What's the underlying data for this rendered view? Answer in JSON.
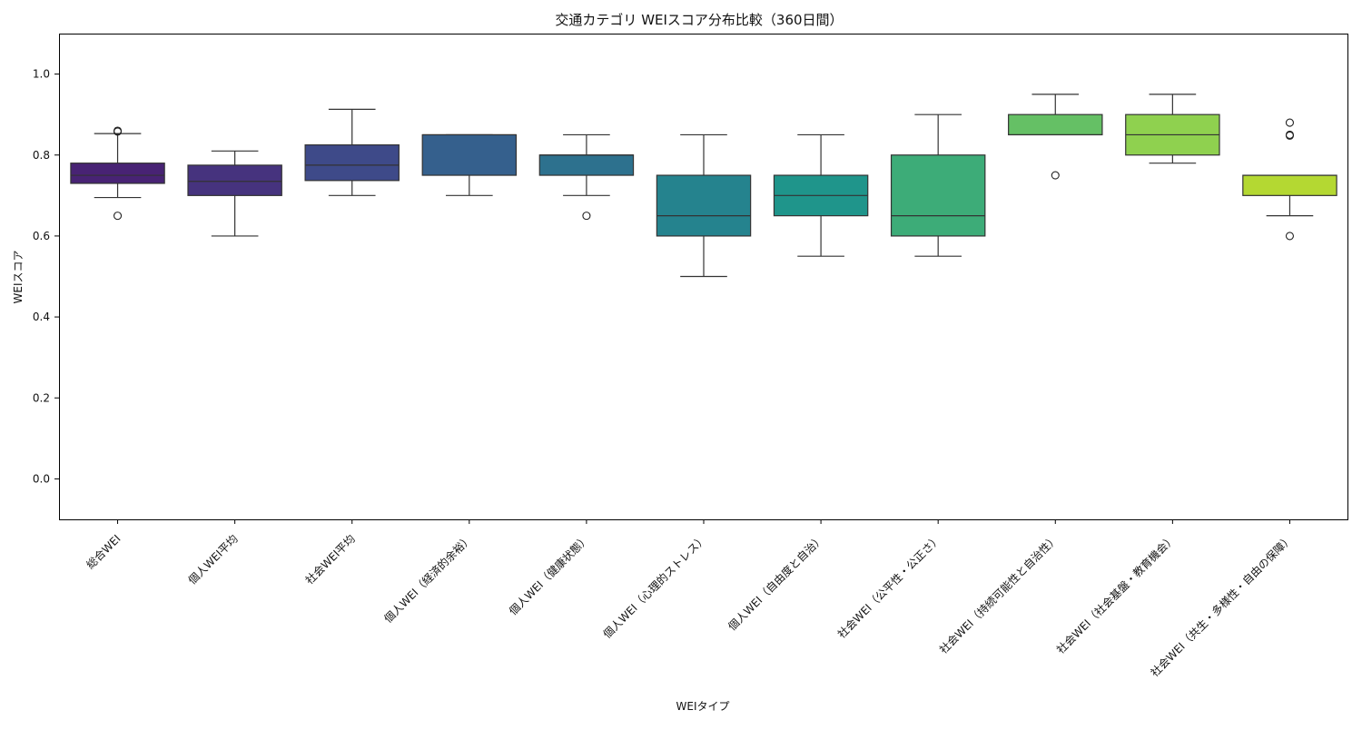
{
  "chart_data": {
    "type": "box",
    "title": "交通カテゴリ WEIスコア分布比較（360日間）",
    "xlabel": "WEIタイプ",
    "ylabel": "WEIスコア",
    "ylim": [
      -0.1,
      1.1
    ],
    "yticks": [
      0.0,
      0.2,
      0.4,
      0.6,
      0.8,
      1.0
    ],
    "ytick_labels": [
      "0.0",
      "0.2",
      "0.4",
      "0.6",
      "0.8",
      "1.0"
    ],
    "grid": false,
    "legend": "none",
    "categories": [
      "総合WEI",
      "個人WEI平均",
      "社会WEI平均",
      "個人WEI（経済的余裕）",
      "個人WEI（健康状態）",
      "個人WEI（心理的ストレス）",
      "個人WEI（自由度と自治）",
      "社会WEI（公平性・公正さ）",
      "社会WEI（持続可能性と自治性）",
      "社会WEI（社会基盤・教育機会）",
      "社会WEI（共生・多様性・自由の保障）"
    ],
    "boxes": [
      {
        "whisker_low": 0.695,
        "q1": 0.73,
        "median": 0.75,
        "q3": 0.78,
        "whisker_high": 0.853,
        "outliers": [
          0.65,
          0.858,
          0.86
        ],
        "color": "#482374"
      },
      {
        "whisker_low": 0.6,
        "q1": 0.7,
        "median": 0.735,
        "q3": 0.775,
        "whisker_high": 0.81,
        "outliers": [],
        "color": "#46337e"
      },
      {
        "whisker_low": 0.7,
        "q1": 0.737,
        "median": 0.775,
        "q3": 0.825,
        "whisker_high": 0.913,
        "outliers": [],
        "color": "#3e4a89"
      },
      {
        "whisker_low": 0.7,
        "q1": 0.75,
        "median": 0.85,
        "q3": 0.85,
        "whisker_high": 0.85,
        "outliers": [],
        "color": "#35608d"
      },
      {
        "whisker_low": 0.7,
        "q1": 0.75,
        "median": 0.8,
        "q3": 0.8,
        "whisker_high": 0.85,
        "outliers": [
          0.65
        ],
        "color": "#2d718e"
      },
      {
        "whisker_low": 0.5,
        "q1": 0.6,
        "median": 0.65,
        "q3": 0.75,
        "whisker_high": 0.85,
        "outliers": [],
        "color": "#25838e"
      },
      {
        "whisker_low": 0.55,
        "q1": 0.65,
        "median": 0.7,
        "q3": 0.75,
        "whisker_high": 0.85,
        "outliers": [],
        "color": "#1f958b"
      },
      {
        "whisker_low": 0.55,
        "q1": 0.6,
        "median": 0.65,
        "q3": 0.8,
        "whisker_high": 0.9,
        "outliers": [],
        "color": "#3dac78"
      },
      {
        "whisker_low": 0.85,
        "q1": 0.85,
        "median": 0.85,
        "q3": 0.9,
        "whisker_high": 0.95,
        "outliers": [
          0.75
        ],
        "color": "#65c065"
      },
      {
        "whisker_low": 0.78,
        "q1": 0.8,
        "median": 0.85,
        "q3": 0.9,
        "whisker_high": 0.95,
        "outliers": [],
        "color": "#8fd14f"
      },
      {
        "whisker_low": 0.65,
        "q1": 0.7,
        "median": 0.75,
        "q3": 0.75,
        "whisker_high": 0.75,
        "outliers": [
          0.6,
          0.848,
          0.85,
          0.88
        ],
        "color": "#b4d832"
      }
    ]
  }
}
